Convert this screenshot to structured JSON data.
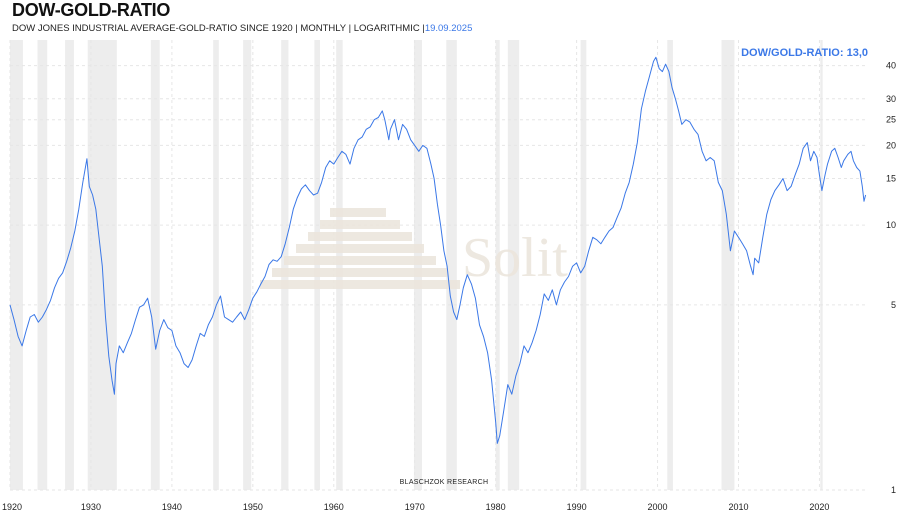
{
  "header": {
    "title": "DOW-GOLD-RATIO",
    "subtitle": "DOW JONES INDUSTRIAL AVERAGE-GOLD-RATIO SINCE 1920 | MONTHLY | LOGARITHMIC |",
    "date": "19.09.2025"
  },
  "annotation": "DOW/GOLD-RATIO: 13,0",
  "credit": "BLASCHZOK   RESEARCH",
  "watermark": "Solit",
  "colors": {
    "line": "#3b78e7",
    "recession": "#ededed",
    "grid": "#e6e6e6",
    "watermark": "#ece6dd"
  },
  "chart_data": {
    "type": "line",
    "scale": "log",
    "ylim": [
      1,
      50
    ],
    "xlim": [
      1920,
      2026
    ],
    "yticks": [
      1,
      5,
      10,
      15,
      20,
      25,
      30,
      40
    ],
    "xticks": [
      1920,
      1930,
      1940,
      1950,
      1960,
      1970,
      1980,
      1990,
      2000,
      2010,
      2020
    ],
    "recessions": [
      [
        1920.0,
        1921.6
      ],
      [
        1923.4,
        1924.6
      ],
      [
        1926.8,
        1927.9
      ],
      [
        1929.6,
        1933.2
      ],
      [
        1937.4,
        1938.5
      ],
      [
        1945.1,
        1945.8
      ],
      [
        1948.8,
        1949.8
      ],
      [
        1953.5,
        1954.4
      ],
      [
        1957.6,
        1958.3
      ],
      [
        1960.3,
        1961.1
      ],
      [
        1969.9,
        1970.9
      ],
      [
        1973.9,
        1975.2
      ],
      [
        1980.0,
        1980.5
      ],
      [
        1981.5,
        1982.9
      ],
      [
        1990.5,
        1991.2
      ],
      [
        2001.2,
        2001.9
      ],
      [
        2007.9,
        2009.5
      ],
      [
        2020.1,
        2020.4
      ]
    ],
    "series": [
      {
        "values": [
          [
            1920.0,
            5.0
          ],
          [
            1920.5,
            4.4
          ],
          [
            1921.0,
            3.8
          ],
          [
            1921.5,
            3.5
          ],
          [
            1922.0,
            4.0
          ],
          [
            1922.5,
            4.5
          ],
          [
            1923.0,
            4.6
          ],
          [
            1923.5,
            4.3
          ],
          [
            1924.0,
            4.5
          ],
          [
            1924.5,
            4.8
          ],
          [
            1925.0,
            5.2
          ],
          [
            1925.5,
            5.8
          ],
          [
            1926.0,
            6.3
          ],
          [
            1926.5,
            6.6
          ],
          [
            1927.0,
            7.3
          ],
          [
            1927.5,
            8.2
          ],
          [
            1928.0,
            9.5
          ],
          [
            1928.5,
            11.5
          ],
          [
            1929.0,
            14.5
          ],
          [
            1929.5,
            17.8
          ],
          [
            1929.8,
            14.0
          ],
          [
            1930.2,
            13.0
          ],
          [
            1930.6,
            11.5
          ],
          [
            1931.0,
            9.0
          ],
          [
            1931.4,
            7.0
          ],
          [
            1931.8,
            4.5
          ],
          [
            1932.2,
            3.2
          ],
          [
            1932.6,
            2.6
          ],
          [
            1932.9,
            2.3
          ],
          [
            1933.1,
            3.0
          ],
          [
            1933.5,
            3.5
          ],
          [
            1934.0,
            3.3
          ],
          [
            1934.5,
            3.6
          ],
          [
            1935.0,
            3.9
          ],
          [
            1935.5,
            4.4
          ],
          [
            1936.0,
            4.9
          ],
          [
            1936.5,
            5.0
          ],
          [
            1937.0,
            5.3
          ],
          [
            1937.5,
            4.5
          ],
          [
            1938.0,
            3.4
          ],
          [
            1938.5,
            4.0
          ],
          [
            1939.0,
            4.4
          ],
          [
            1939.5,
            4.1
          ],
          [
            1940.0,
            4.0
          ],
          [
            1940.5,
            3.5
          ],
          [
            1941.0,
            3.3
          ],
          [
            1941.5,
            3.0
          ],
          [
            1942.0,
            2.9
          ],
          [
            1942.5,
            3.1
          ],
          [
            1943.0,
            3.5
          ],
          [
            1943.5,
            3.9
          ],
          [
            1944.0,
            3.8
          ],
          [
            1944.5,
            4.2
          ],
          [
            1945.0,
            4.5
          ],
          [
            1945.5,
            5.0
          ],
          [
            1946.0,
            5.4
          ],
          [
            1946.5,
            4.5
          ],
          [
            1947.0,
            4.4
          ],
          [
            1947.5,
            4.3
          ],
          [
            1948.0,
            4.5
          ],
          [
            1948.5,
            4.7
          ],
          [
            1949.0,
            4.4
          ],
          [
            1949.5,
            4.8
          ],
          [
            1950.0,
            5.3
          ],
          [
            1950.5,
            5.6
          ],
          [
            1951.0,
            6.0
          ],
          [
            1951.5,
            6.4
          ],
          [
            1952.0,
            7.1
          ],
          [
            1952.5,
            7.4
          ],
          [
            1953.0,
            7.3
          ],
          [
            1953.5,
            7.6
          ],
          [
            1954.0,
            8.5
          ],
          [
            1954.5,
            9.8
          ],
          [
            1955.0,
            11.5
          ],
          [
            1955.5,
            12.7
          ],
          [
            1956.0,
            13.7
          ],
          [
            1956.5,
            14.2
          ],
          [
            1957.0,
            13.5
          ],
          [
            1957.5,
            13.0
          ],
          [
            1958.0,
            13.2
          ],
          [
            1958.5,
            14.5
          ],
          [
            1959.0,
            16.5
          ],
          [
            1959.5,
            17.5
          ],
          [
            1960.0,
            17.0
          ],
          [
            1960.5,
            18.0
          ],
          [
            1961.0,
            19.0
          ],
          [
            1961.5,
            18.5
          ],
          [
            1962.0,
            17.0
          ],
          [
            1962.5,
            19.5
          ],
          [
            1963.0,
            21.0
          ],
          [
            1963.5,
            21.5
          ],
          [
            1964.0,
            23.0
          ],
          [
            1964.5,
            23.5
          ],
          [
            1965.0,
            25.0
          ],
          [
            1965.5,
            25.5
          ],
          [
            1966.0,
            27.0
          ],
          [
            1966.3,
            25.0
          ],
          [
            1966.8,
            21.0
          ],
          [
            1967.0,
            23.0
          ],
          [
            1967.5,
            25.0
          ],
          [
            1968.0,
            21.0
          ],
          [
            1968.5,
            24.0
          ],
          [
            1969.0,
            23.0
          ],
          [
            1969.5,
            21.0
          ],
          [
            1970.0,
            20.0
          ],
          [
            1970.5,
            19.0
          ],
          [
            1971.0,
            20.0
          ],
          [
            1971.5,
            19.5
          ],
          [
            1972.0,
            17.0
          ],
          [
            1972.4,
            15.0
          ],
          [
            1972.8,
            12.0
          ],
          [
            1973.2,
            10.0
          ],
          [
            1973.6,
            8.0
          ],
          [
            1974.0,
            7.0
          ],
          [
            1974.4,
            5.4
          ],
          [
            1974.8,
            4.7
          ],
          [
            1975.2,
            4.4
          ],
          [
            1975.6,
            5.0
          ],
          [
            1976.0,
            5.8
          ],
          [
            1976.5,
            6.5
          ],
          [
            1977.0,
            6.0
          ],
          [
            1977.5,
            5.3
          ],
          [
            1978.0,
            4.2
          ],
          [
            1978.5,
            3.8
          ],
          [
            1979.0,
            3.3
          ],
          [
            1979.5,
            2.6
          ],
          [
            1980.0,
            1.8
          ],
          [
            1980.2,
            1.5
          ],
          [
            1980.5,
            1.6
          ],
          [
            1981.0,
            2.0
          ],
          [
            1981.5,
            2.5
          ],
          [
            1982.0,
            2.3
          ],
          [
            1982.5,
            2.7
          ],
          [
            1983.0,
            3.0
          ],
          [
            1983.5,
            3.5
          ],
          [
            1984.0,
            3.3
          ],
          [
            1984.5,
            3.6
          ],
          [
            1985.0,
            4.0
          ],
          [
            1985.5,
            4.6
          ],
          [
            1986.0,
            5.5
          ],
          [
            1986.5,
            5.2
          ],
          [
            1987.0,
            5.7
          ],
          [
            1987.5,
            5.0
          ],
          [
            1988.0,
            5.7
          ],
          [
            1988.5,
            6.1
          ],
          [
            1989.0,
            6.4
          ],
          [
            1989.5,
            7.0
          ],
          [
            1990.0,
            7.2
          ],
          [
            1990.5,
            6.6
          ],
          [
            1991.0,
            7.0
          ],
          [
            1991.5,
            8.0
          ],
          [
            1992.0,
            9.0
          ],
          [
            1992.5,
            8.8
          ],
          [
            1993.0,
            8.5
          ],
          [
            1993.5,
            9.0
          ],
          [
            1994.0,
            9.5
          ],
          [
            1994.5,
            9.8
          ],
          [
            1995.0,
            10.7
          ],
          [
            1995.5,
            11.6
          ],
          [
            1996.0,
            13.2
          ],
          [
            1996.5,
            14.5
          ],
          [
            1997.0,
            17.0
          ],
          [
            1997.5,
            20.5
          ],
          [
            1998.0,
            27.5
          ],
          [
            1998.5,
            32.0
          ],
          [
            1999.0,
            36.5
          ],
          [
            1999.5,
            41.5
          ],
          [
            1999.8,
            43.0
          ],
          [
            2000.2,
            39.0
          ],
          [
            2000.6,
            38.0
          ],
          [
            2001.0,
            40.5
          ],
          [
            2001.4,
            38.0
          ],
          [
            2001.8,
            33.0
          ],
          [
            2002.2,
            30.0
          ],
          [
            2002.6,
            27.0
          ],
          [
            2003.0,
            24.0
          ],
          [
            2003.5,
            25.0
          ],
          [
            2004.0,
            24.5
          ],
          [
            2004.5,
            23.0
          ],
          [
            2005.0,
            22.0
          ],
          [
            2005.5,
            19.0
          ],
          [
            2006.0,
            17.5
          ],
          [
            2006.5,
            18.0
          ],
          [
            2007.0,
            17.5
          ],
          [
            2007.5,
            14.5
          ],
          [
            2008.0,
            13.5
          ],
          [
            2008.5,
            11.0
          ],
          [
            2009.0,
            8.0
          ],
          [
            2009.5,
            9.5
          ],
          [
            2010.0,
            9.0
          ],
          [
            2010.5,
            8.5
          ],
          [
            2011.0,
            8.0
          ],
          [
            2011.5,
            7.0
          ],
          [
            2011.8,
            6.5
          ],
          [
            2012.0,
            7.5
          ],
          [
            2012.5,
            7.2
          ],
          [
            2013.0,
            9.0
          ],
          [
            2013.5,
            11.0
          ],
          [
            2014.0,
            12.5
          ],
          [
            2014.5,
            13.5
          ],
          [
            2015.0,
            14.2
          ],
          [
            2015.5,
            15.0
          ],
          [
            2016.0,
            13.5
          ],
          [
            2016.5,
            14.0
          ],
          [
            2017.0,
            15.5
          ],
          [
            2017.5,
            17.0
          ],
          [
            2018.0,
            19.5
          ],
          [
            2018.5,
            20.5
          ],
          [
            2018.9,
            17.5
          ],
          [
            2019.3,
            19.0
          ],
          [
            2019.7,
            18.0
          ],
          [
            2020.0,
            15.5
          ],
          [
            2020.3,
            13.5
          ],
          [
            2020.7,
            15.5
          ],
          [
            2021.0,
            17.0
          ],
          [
            2021.5,
            19.0
          ],
          [
            2021.9,
            19.5
          ],
          [
            2022.3,
            18.0
          ],
          [
            2022.7,
            16.5
          ],
          [
            2023.0,
            17.5
          ],
          [
            2023.5,
            18.5
          ],
          [
            2023.9,
            19.0
          ],
          [
            2024.2,
            17.5
          ],
          [
            2024.6,
            16.5
          ],
          [
            2025.0,
            16.0
          ],
          [
            2025.3,
            14.0
          ],
          [
            2025.5,
            12.3
          ],
          [
            2025.7,
            13.0
          ]
        ]
      }
    ]
  }
}
